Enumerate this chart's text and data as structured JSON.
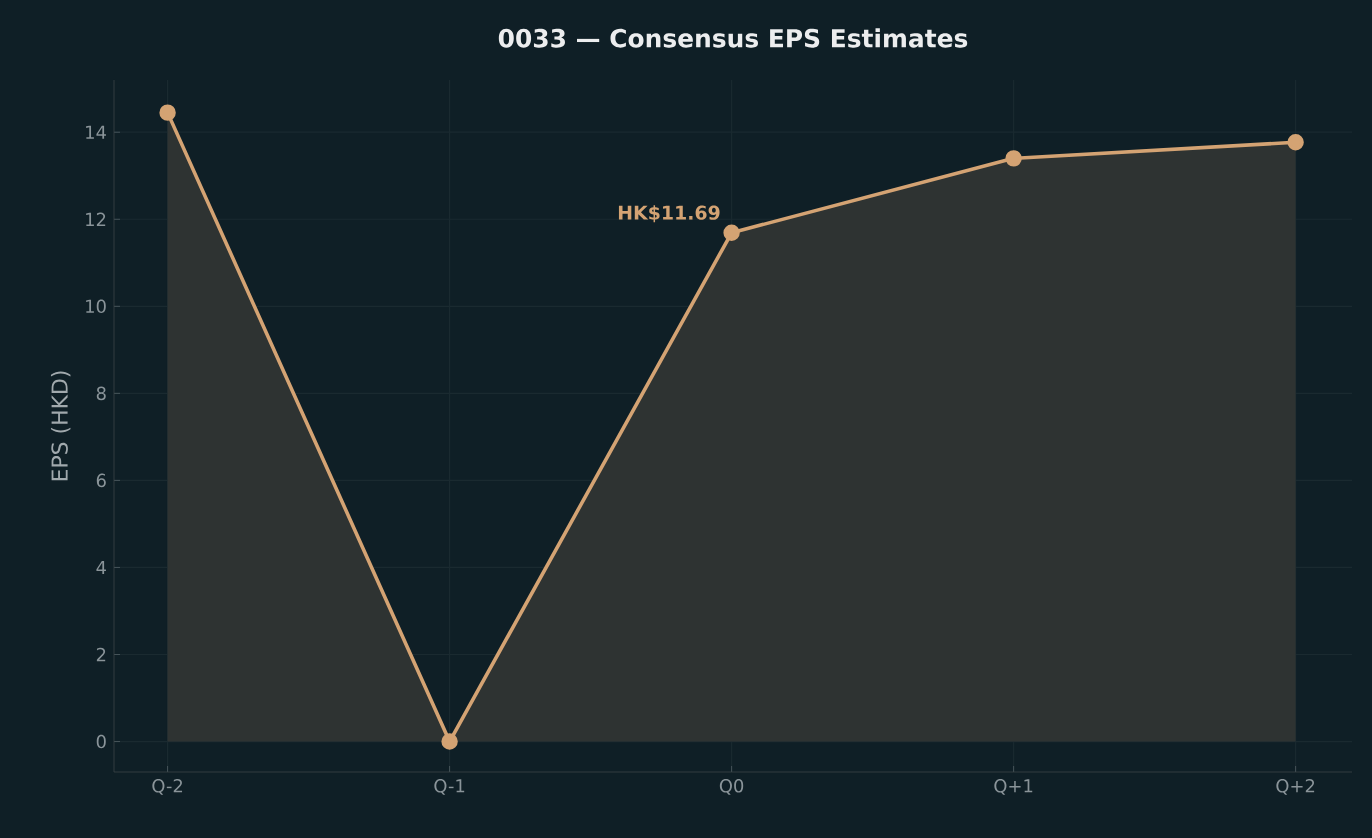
{
  "chart_data": {
    "type": "area",
    "title": "0033 — Consensus EPS Estimates",
    "ylabel": "EPS (HKD)",
    "categories": [
      "Q-2",
      "Q-1",
      "Q0",
      "Q+1",
      "Q+2"
    ],
    "series": [
      {
        "color": "#d4a373",
        "values": [
          14.45,
          0,
          11.69,
          13.4,
          13.77
        ]
      }
    ],
    "ylim": [
      -0.7,
      15.2
    ],
    "yticks": [
      0,
      2,
      4,
      6,
      8,
      10,
      12,
      14
    ],
    "grid": true,
    "marker": "circle",
    "line_style": "solid",
    "annotations": [
      {
        "text": "HK$11.69",
        "x": "Q0",
        "y": 11.69
      }
    ]
  }
}
